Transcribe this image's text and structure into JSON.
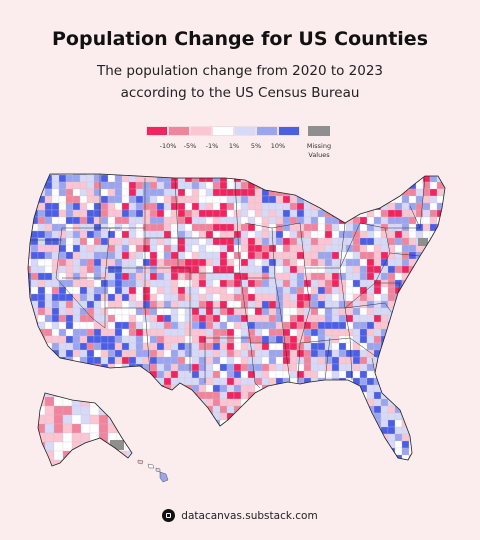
{
  "title": "Population Change for US Counties",
  "subtitle_line1": "The population change from 2020 to 2023",
  "subtitle_line2": "according to the US Census Bureau",
  "legend": {
    "colors": [
      "#f0245e",
      "#f1849c",
      "#fbc5d2",
      "#ffffff",
      "#d6d9f7",
      "#9ba4ee",
      "#4a5ee6"
    ],
    "ticks": [
      "-10%",
      "-5%",
      "-1%",
      "1%",
      "5%",
      "10%"
    ],
    "missing_color": "#8f8f8f",
    "missing_label_1": "Missing",
    "missing_label_2": "Values"
  },
  "footer": {
    "logo_icon": "datacanvas-logo-icon",
    "text": "datacanvas.substack.com"
  }
}
